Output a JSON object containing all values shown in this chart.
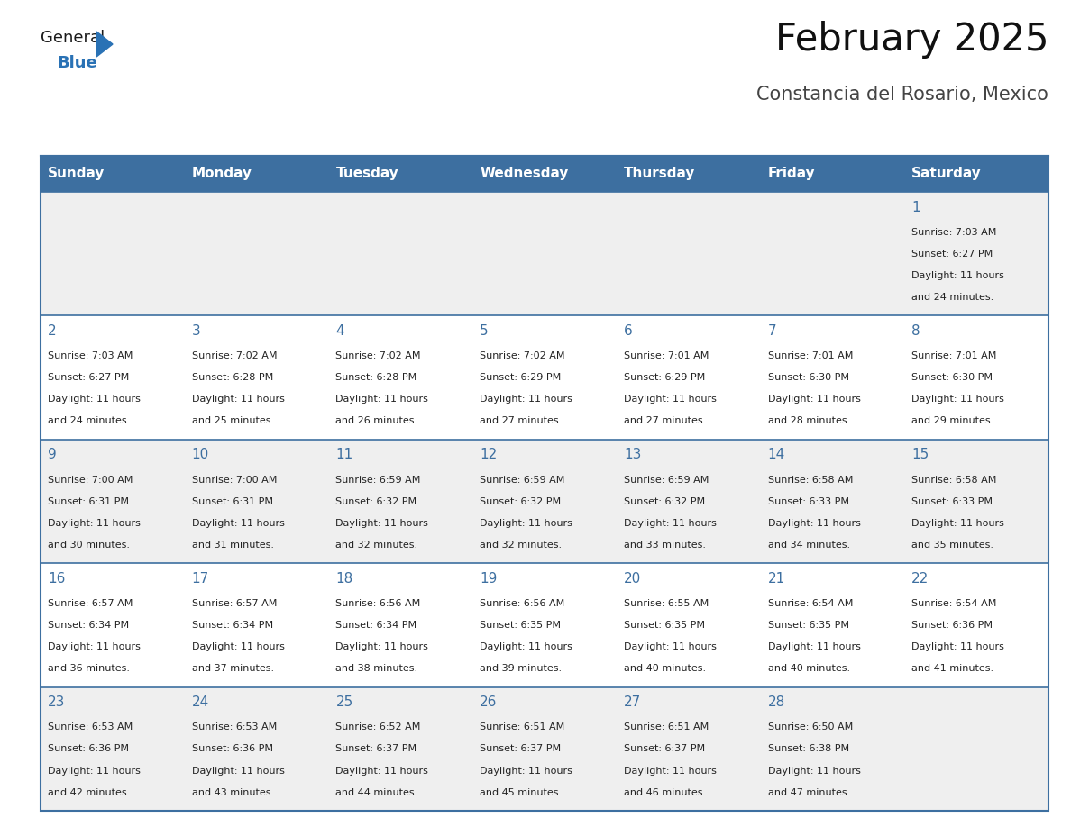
{
  "title": "February 2025",
  "subtitle": "Constancia del Rosario, Mexico",
  "days_of_week": [
    "Sunday",
    "Monday",
    "Tuesday",
    "Wednesday",
    "Thursday",
    "Friday",
    "Saturday"
  ],
  "header_bg": "#3d6fa0",
  "header_text": "#ffffff",
  "row_bg_odd": "#efefef",
  "row_bg_even": "#ffffff",
  "cell_border": "#3d6fa0",
  "day_num_color": "#3d6fa0",
  "text_color": "#222222",
  "calendar_data": [
    [
      null,
      null,
      null,
      null,
      null,
      null,
      {
        "day": 1,
        "sunrise": "7:03 AM",
        "sunset": "6:27 PM",
        "daylight": "11 hours and 24 minutes."
      }
    ],
    [
      {
        "day": 2,
        "sunrise": "7:03 AM",
        "sunset": "6:27 PM",
        "daylight": "11 hours and 24 minutes."
      },
      {
        "day": 3,
        "sunrise": "7:02 AM",
        "sunset": "6:28 PM",
        "daylight": "11 hours and 25 minutes."
      },
      {
        "day": 4,
        "sunrise": "7:02 AM",
        "sunset": "6:28 PM",
        "daylight": "11 hours and 26 minutes."
      },
      {
        "day": 5,
        "sunrise": "7:02 AM",
        "sunset": "6:29 PM",
        "daylight": "11 hours and 27 minutes."
      },
      {
        "day": 6,
        "sunrise": "7:01 AM",
        "sunset": "6:29 PM",
        "daylight": "11 hours and 27 minutes."
      },
      {
        "day": 7,
        "sunrise": "7:01 AM",
        "sunset": "6:30 PM",
        "daylight": "11 hours and 28 minutes."
      },
      {
        "day": 8,
        "sunrise": "7:01 AM",
        "sunset": "6:30 PM",
        "daylight": "11 hours and 29 minutes."
      }
    ],
    [
      {
        "day": 9,
        "sunrise": "7:00 AM",
        "sunset": "6:31 PM",
        "daylight": "11 hours and 30 minutes."
      },
      {
        "day": 10,
        "sunrise": "7:00 AM",
        "sunset": "6:31 PM",
        "daylight": "11 hours and 31 minutes."
      },
      {
        "day": 11,
        "sunrise": "6:59 AM",
        "sunset": "6:32 PM",
        "daylight": "11 hours and 32 minutes."
      },
      {
        "day": 12,
        "sunrise": "6:59 AM",
        "sunset": "6:32 PM",
        "daylight": "11 hours and 32 minutes."
      },
      {
        "day": 13,
        "sunrise": "6:59 AM",
        "sunset": "6:32 PM",
        "daylight": "11 hours and 33 minutes."
      },
      {
        "day": 14,
        "sunrise": "6:58 AM",
        "sunset": "6:33 PM",
        "daylight": "11 hours and 34 minutes."
      },
      {
        "day": 15,
        "sunrise": "6:58 AM",
        "sunset": "6:33 PM",
        "daylight": "11 hours and 35 minutes."
      }
    ],
    [
      {
        "day": 16,
        "sunrise": "6:57 AM",
        "sunset": "6:34 PM",
        "daylight": "11 hours and 36 minutes."
      },
      {
        "day": 17,
        "sunrise": "6:57 AM",
        "sunset": "6:34 PM",
        "daylight": "11 hours and 37 minutes."
      },
      {
        "day": 18,
        "sunrise": "6:56 AM",
        "sunset": "6:34 PM",
        "daylight": "11 hours and 38 minutes."
      },
      {
        "day": 19,
        "sunrise": "6:56 AM",
        "sunset": "6:35 PM",
        "daylight": "11 hours and 39 minutes."
      },
      {
        "day": 20,
        "sunrise": "6:55 AM",
        "sunset": "6:35 PM",
        "daylight": "11 hours and 40 minutes."
      },
      {
        "day": 21,
        "sunrise": "6:54 AM",
        "sunset": "6:35 PM",
        "daylight": "11 hours and 40 minutes."
      },
      {
        "day": 22,
        "sunrise": "6:54 AM",
        "sunset": "6:36 PM",
        "daylight": "11 hours and 41 minutes."
      }
    ],
    [
      {
        "day": 23,
        "sunrise": "6:53 AM",
        "sunset": "6:36 PM",
        "daylight": "11 hours and 42 minutes."
      },
      {
        "day": 24,
        "sunrise": "6:53 AM",
        "sunset": "6:36 PM",
        "daylight": "11 hours and 43 minutes."
      },
      {
        "day": 25,
        "sunrise": "6:52 AM",
        "sunset": "6:37 PM",
        "daylight": "11 hours and 44 minutes."
      },
      {
        "day": 26,
        "sunrise": "6:51 AM",
        "sunset": "6:37 PM",
        "daylight": "11 hours and 45 minutes."
      },
      {
        "day": 27,
        "sunrise": "6:51 AM",
        "sunset": "6:37 PM",
        "daylight": "11 hours and 46 minutes."
      },
      {
        "day": 28,
        "sunrise": "6:50 AM",
        "sunset": "6:38 PM",
        "daylight": "11 hours and 47 minutes."
      },
      null
    ]
  ],
  "logo_color_general": "#1a1a1a",
  "logo_color_blue": "#2a72b5",
  "logo_triangle_color": "#2a72b5",
  "figsize": [
    11.88,
    9.18
  ],
  "dpi": 100
}
